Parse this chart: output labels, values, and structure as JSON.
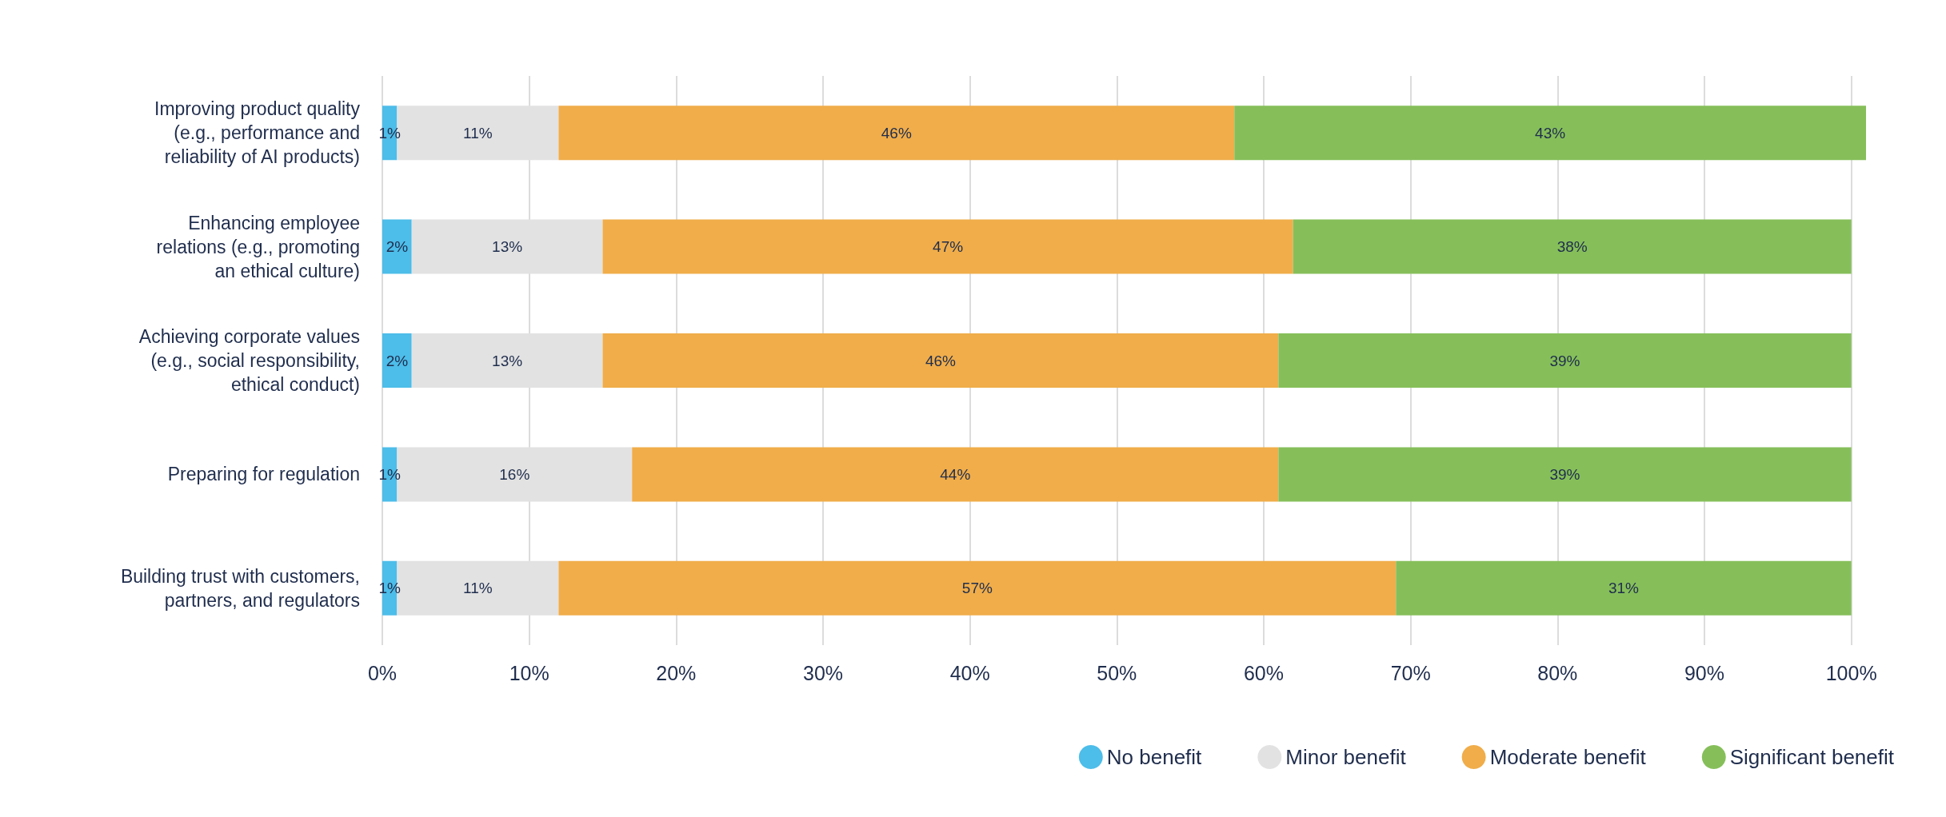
{
  "chart_data": {
    "type": "bar",
    "orientation": "horizontal",
    "stacked": true,
    "categories": [
      "Improving product quality\n(e.g., performance and\nreliability of AI products)",
      "Enhancing employee\nrelations (e.g., promoting\nan ethical culture)",
      "Achieving corporate values\n(e.g., social responsibility,\nethical conduct)",
      "Preparing for regulation",
      "Building trust with customers,\npartners, and regulators"
    ],
    "series": [
      {
        "name": "No benefit",
        "color": "#4dbde9",
        "values": [
          1,
          2,
          2,
          1,
          1
        ],
        "value_labels": [
          "1%",
          "2%",
          "2%",
          "1%",
          "1%"
        ]
      },
      {
        "name": "Minor benefit",
        "color": "#e2e2e2",
        "values": [
          11,
          13,
          13,
          16,
          11
        ],
        "value_labels": [
          "11%",
          "13%",
          "13%",
          "16%",
          "11%"
        ]
      },
      {
        "name": "Moderate benefit",
        "color": "#f0ad4a",
        "values": [
          46,
          47,
          46,
          44,
          57
        ],
        "value_labels": [
          "46%",
          "47%",
          "46%",
          "44%",
          "57%"
        ]
      },
      {
        "name": "Significant benefit",
        "color": "#86bf5a",
        "values": [
          43,
          38,
          39,
          39,
          31
        ],
        "value_labels": [
          "43%",
          "38%",
          "39%",
          "39%",
          "31%"
        ]
      }
    ],
    "xlim": [
      0,
      101
    ],
    "xticks": [
      {
        "value": 0,
        "label": "0%"
      },
      {
        "value": 10,
        "label": "10%"
      },
      {
        "value": 20,
        "label": "20%"
      },
      {
        "value": 30,
        "label": "30%"
      },
      {
        "value": 40,
        "label": "40%"
      },
      {
        "value": 50,
        "label": "50%"
      },
      {
        "value": 60,
        "label": "60%"
      },
      {
        "value": 70,
        "label": "70%"
      },
      {
        "value": 80,
        "label": "80%"
      },
      {
        "value": 90,
        "label": "90%"
      },
      {
        "value": 100,
        "label": "100%"
      }
    ],
    "grid": "x",
    "legend": "bottom right"
  }
}
